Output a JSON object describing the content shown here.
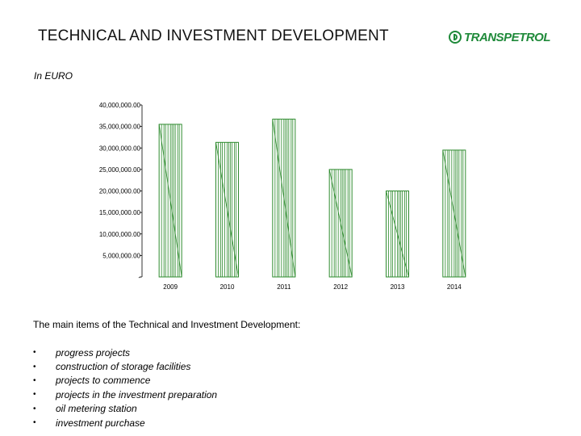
{
  "header": {
    "title": "TECHNICAL AND INVESTMENT DEVELOPMENT",
    "logo_text": "TRANSPETROL"
  },
  "unit_label": "In EURO",
  "chart_data": {
    "type": "bar",
    "categories": [
      "2009",
      "2010",
      "2011",
      "2012",
      "2013",
      "2014"
    ],
    "values": [
      35500000,
      31300000,
      36700000,
      25000000,
      20000000,
      29500000
    ],
    "ylim": [
      0,
      40000000
    ],
    "yticks": [
      "-",
      "5,000,000.00",
      "10,000,000.00",
      "15,000,000.00",
      "20,000,000.00",
      "25,000,000.00",
      "30,000,000.00",
      "35,000,000.00",
      "40,000,000.00"
    ],
    "title": "",
    "xlabel": "",
    "ylabel": "",
    "bar_color": "#2e8b2e",
    "grid": false,
    "legend": "none"
  },
  "summary": {
    "intro": "The main items of the Technical and Investment Development:",
    "bullet": "•",
    "items": [
      "progress projects",
      "construction of storage facilities",
      "projects to commence",
      "projects in the investment preparation",
      "oil metering station",
      "investment purchase"
    ]
  }
}
